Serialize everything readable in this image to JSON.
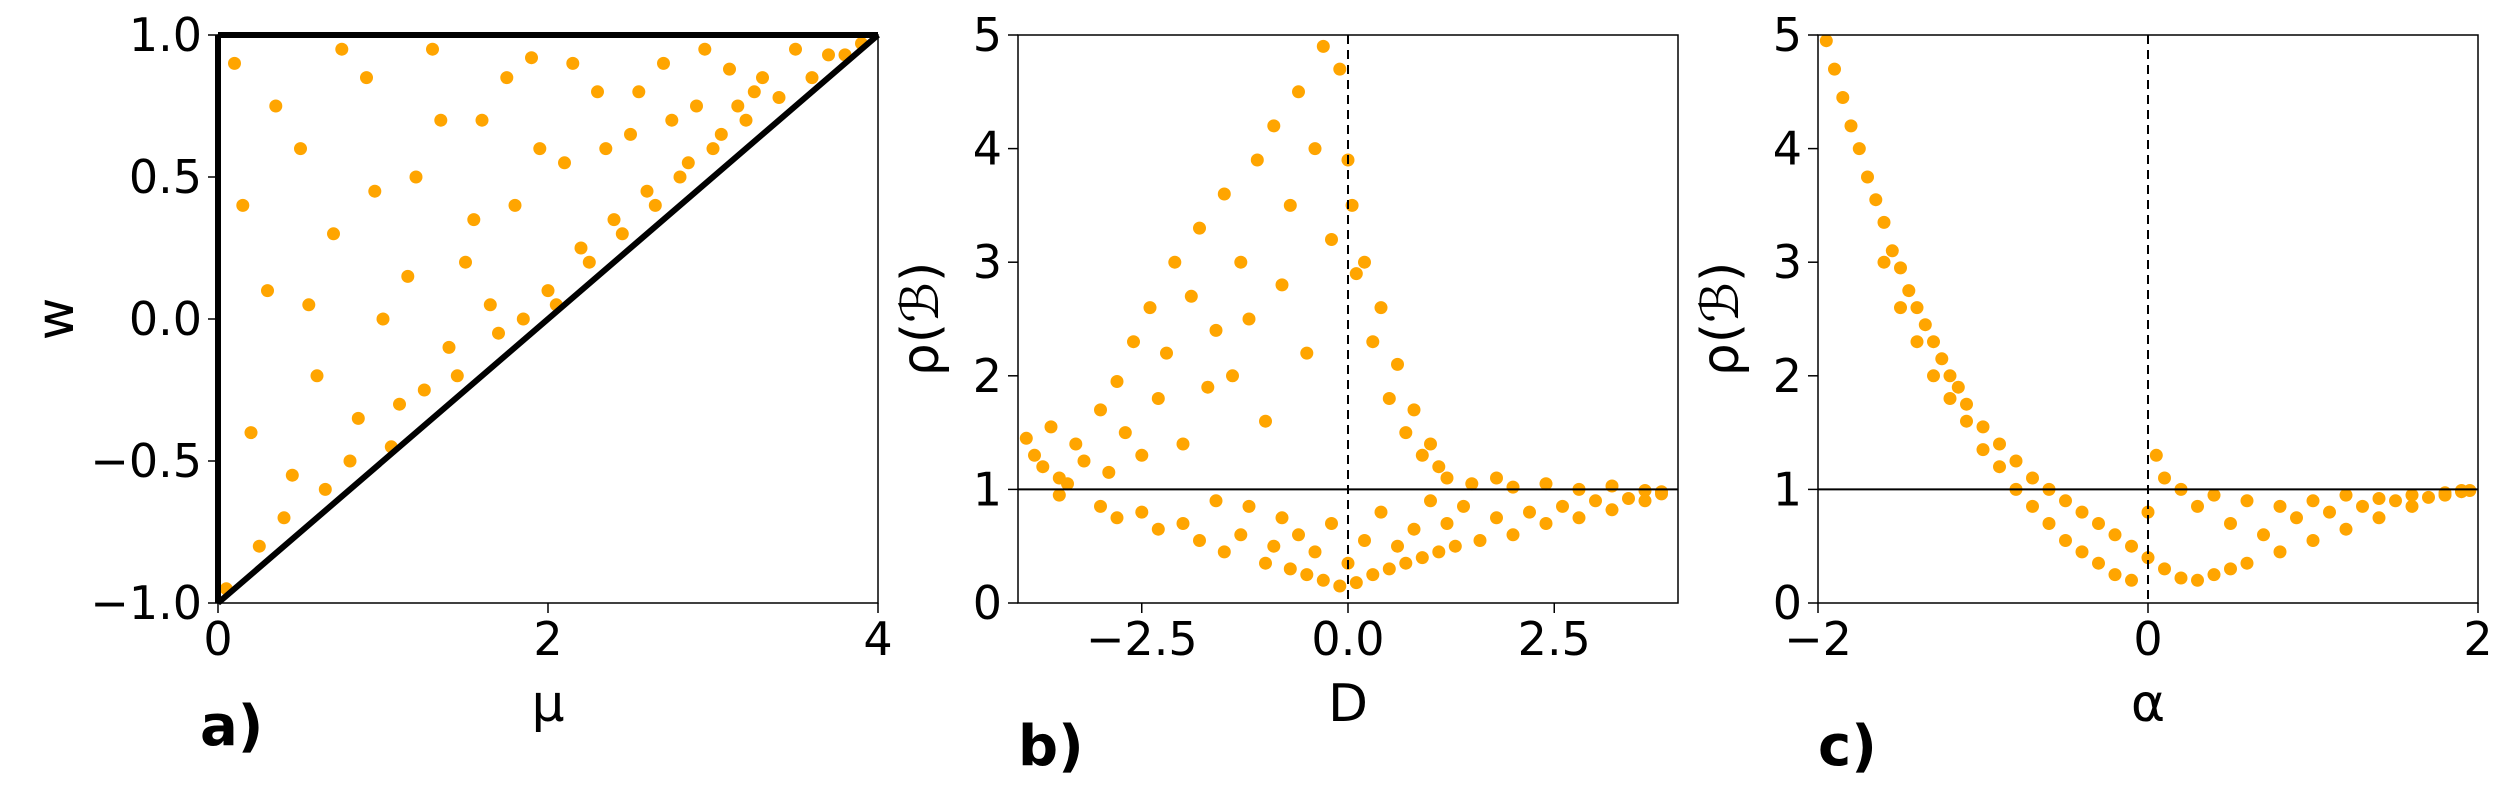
{
  "figure": {
    "background": "#ffffff",
    "point_color": "#ffa500"
  },
  "chart_data": [
    {
      "type": "scatter",
      "panel_label": "a)",
      "xlabel": "μ",
      "ylabel": "w",
      "xlim": [
        0,
        4
      ],
      "ylim": [
        -1.0,
        1.0
      ],
      "xticks": [
        0,
        2,
        4
      ],
      "xtick_labels": [
        "0",
        "2",
        "4"
      ],
      "yticks": [
        -1.0,
        -0.5,
        0.0,
        0.5,
        1.0
      ],
      "ytick_labels": [
        "−1.0",
        "−0.5",
        "0.0",
        "0.5",
        "1.0"
      ],
      "grid": false,
      "legend": "none",
      "series_color": "#ffa500",
      "region_description": "points uniformly fill the triangle bounded by μ = 0, w = 1 and w = μ/2 − 1",
      "reference_lines": [
        {
          "kind": "segment",
          "from": [
            0,
            -1.0
          ],
          "to": [
            0,
            1.0
          ],
          "color": "#000000",
          "style": "solid"
        },
        {
          "kind": "segment",
          "from": [
            0,
            1.0
          ],
          "to": [
            4,
            1.0
          ],
          "color": "#000000",
          "style": "solid"
        },
        {
          "kind": "segment",
          "from": [
            0,
            -1.0
          ],
          "to": [
            4,
            1.0
          ],
          "color": "#000000",
          "style": "solid"
        }
      ],
      "points": [
        [
          0.05,
          -0.95
        ],
        [
          0.1,
          0.9
        ],
        [
          0.2,
          -0.4
        ],
        [
          0.3,
          0.1
        ],
        [
          0.4,
          -0.7
        ],
        [
          0.5,
          0.6
        ],
        [
          0.6,
          -0.2
        ],
        [
          0.7,
          0.3
        ],
        [
          0.8,
          -0.5
        ],
        [
          0.9,
          0.85
        ],
        [
          1.0,
          0.0
        ],
        [
          1.1,
          -0.3
        ],
        [
          1.2,
          0.5
        ],
        [
          1.3,
          0.95
        ],
        [
          1.4,
          -0.1
        ],
        [
          1.5,
          0.2
        ],
        [
          1.6,
          0.7
        ],
        [
          1.7,
          -0.05
        ],
        [
          1.8,
          0.4
        ],
        [
          1.9,
          0.92
        ],
        [
          2.0,
          0.1
        ],
        [
          2.1,
          0.55
        ],
        [
          2.2,
          0.25
        ],
        [
          2.3,
          0.8
        ],
        [
          2.4,
          0.35
        ],
        [
          2.5,
          0.65
        ],
        [
          2.6,
          0.45
        ],
        [
          2.7,
          0.9
        ],
        [
          2.8,
          0.5
        ],
        [
          2.9,
          0.75
        ],
        [
          3.0,
          0.6
        ],
        [
          3.1,
          0.88
        ],
        [
          3.2,
          0.7
        ],
        [
          3.3,
          0.85
        ],
        [
          3.4,
          0.78
        ],
        [
          3.5,
          0.95
        ],
        [
          3.6,
          0.85
        ],
        [
          3.7,
          0.93
        ],
        [
          3.8,
          0.93
        ],
        [
          3.9,
          0.97
        ],
        [
          0.15,
          0.4
        ],
        [
          0.25,
          -0.8
        ],
        [
          0.35,
          0.75
        ],
        [
          0.45,
          -0.55
        ],
        [
          0.55,
          0.05
        ],
        [
          0.65,
          -0.6
        ],
        [
          0.75,
          0.95
        ],
        [
          0.85,
          -0.35
        ],
        [
          0.95,
          0.45
        ],
        [
          1.05,
          -0.45
        ],
        [
          1.15,
          0.15
        ],
        [
          1.25,
          -0.25
        ],
        [
          1.35,
          0.7
        ],
        [
          1.45,
          -0.2
        ],
        [
          1.55,
          0.35
        ],
        [
          1.65,
          0.05
        ],
        [
          1.75,
          0.85
        ],
        [
          1.85,
          0.0
        ],
        [
          1.95,
          0.6
        ],
        [
          2.05,
          0.05
        ],
        [
          2.15,
          0.9
        ],
        [
          2.25,
          0.2
        ],
        [
          2.35,
          0.6
        ],
        [
          2.45,
          0.3
        ],
        [
          2.55,
          0.8
        ],
        [
          2.65,
          0.4
        ],
        [
          2.75,
          0.7
        ],
        [
          2.85,
          0.55
        ],
        [
          2.95,
          0.95
        ],
        [
          3.05,
          0.65
        ],
        [
          3.15,
          0.75
        ],
        [
          3.25,
          0.8
        ]
      ]
    },
    {
      "type": "scatter",
      "panel_label": "b)",
      "xlabel": "D",
      "ylabel": "ρ(ℬ)",
      "xlim": [
        -4.0,
        4.0
      ],
      "ylim": [
        0,
        5
      ],
      "xticks": [
        -2.5,
        0.0,
        2.5
      ],
      "xtick_labels": [
        "−2.5",
        "0.0",
        "2.5"
      ],
      "yticks": [
        0,
        1,
        2,
        3,
        4,
        5
      ],
      "ytick_labels": [
        "0",
        "1",
        "2",
        "3",
        "4",
        "5"
      ],
      "grid": false,
      "legend": "none",
      "series_color": "#ffa500",
      "reference_lines": [
        {
          "kind": "horizontal",
          "value": 1,
          "color": "#000000",
          "style": "solid"
        },
        {
          "kind": "vertical",
          "value": 0.0,
          "color": "#000000",
          "style": "dashed"
        }
      ],
      "points": [
        [
          -3.9,
          1.45
        ],
        [
          -3.8,
          1.3
        ],
        [
          -3.7,
          1.2
        ],
        [
          -3.6,
          1.55
        ],
        [
          -3.5,
          1.1
        ],
        [
          -3.4,
          1.05
        ],
        [
          -3.3,
          1.4
        ],
        [
          -3.2,
          1.25
        ],
        [
          -3.0,
          1.7
        ],
        [
          -2.9,
          1.15
        ],
        [
          -2.8,
          1.95
        ],
        [
          -2.7,
          1.5
        ],
        [
          -2.6,
          2.3
        ],
        [
          -2.5,
          1.3
        ],
        [
          -2.4,
          2.6
        ],
        [
          -2.3,
          1.8
        ],
        [
          -2.2,
          2.2
        ],
        [
          -2.1,
          3.0
        ],
        [
          -2.0,
          1.4
        ],
        [
          -1.9,
          2.7
        ],
        [
          -1.8,
          3.3
        ],
        [
          -1.7,
          1.9
        ],
        [
          -1.6,
          2.4
        ],
        [
          -1.5,
          3.6
        ],
        [
          -1.4,
          2.0
        ],
        [
          -1.3,
          3.0
        ],
        [
          -1.2,
          2.5
        ],
        [
          -1.1,
          3.9
        ],
        [
          -1.0,
          1.6
        ],
        [
          -0.9,
          4.2
        ],
        [
          -0.8,
          2.8
        ],
        [
          -0.7,
          3.5
        ],
        [
          -0.6,
          4.5
        ],
        [
          -0.5,
          2.2
        ],
        [
          -0.4,
          4.0
        ],
        [
          -0.3,
          4.9
        ],
        [
          -0.2,
          3.2
        ],
        [
          -0.1,
          4.7
        ],
        [
          0.0,
          3.9
        ],
        [
          0.05,
          3.5
        ],
        [
          0.1,
          2.9
        ],
        [
          0.2,
          3.0
        ],
        [
          0.3,
          2.3
        ],
        [
          0.4,
          2.6
        ],
        [
          0.5,
          1.8
        ],
        [
          0.6,
          2.1
        ],
        [
          0.7,
          1.5
        ],
        [
          0.8,
          1.7
        ],
        [
          0.9,
          1.3
        ],
        [
          1.0,
          1.4
        ],
        [
          1.1,
          1.2
        ],
        [
          1.2,
          1.1
        ],
        [
          1.5,
          1.05
        ],
        [
          1.8,
          1.1
        ],
        [
          2.0,
          1.02
        ],
        [
          2.4,
          1.05
        ],
        [
          2.8,
          1.0
        ],
        [
          3.2,
          1.03
        ],
        [
          3.6,
          0.99
        ],
        [
          3.8,
          0.98
        ],
        [
          -3.5,
          0.95
        ],
        [
          -3.0,
          0.85
        ],
        [
          -2.8,
          0.75
        ],
        [
          -2.5,
          0.8
        ],
        [
          -2.3,
          0.65
        ],
        [
          -2.0,
          0.7
        ],
        [
          -1.8,
          0.55
        ],
        [
          -1.6,
          0.9
        ],
        [
          -1.5,
          0.45
        ],
        [
          -1.3,
          0.6
        ],
        [
          -1.2,
          0.85
        ],
        [
          -1.0,
          0.35
        ],
        [
          -0.9,
          0.5
        ],
        [
          -0.8,
          0.75
        ],
        [
          -0.7,
          0.3
        ],
        [
          -0.6,
          0.6
        ],
        [
          -0.5,
          0.25
        ],
        [
          -0.4,
          0.45
        ],
        [
          -0.3,
          0.2
        ],
        [
          -0.2,
          0.7
        ],
        [
          -0.1,
          0.15
        ],
        [
          0.0,
          0.35
        ],
        [
          0.1,
          0.18
        ],
        [
          0.2,
          0.55
        ],
        [
          0.3,
          0.25
        ],
        [
          0.4,
          0.8
        ],
        [
          0.5,
          0.3
        ],
        [
          0.6,
          0.5
        ],
        [
          0.7,
          0.35
        ],
        [
          0.8,
          0.65
        ],
        [
          0.9,
          0.4
        ],
        [
          1.0,
          0.9
        ],
        [
          1.1,
          0.45
        ],
        [
          1.2,
          0.7
        ],
        [
          1.3,
          0.5
        ],
        [
          1.4,
          0.85
        ],
        [
          1.6,
          0.55
        ],
        [
          1.8,
          0.75
        ],
        [
          2.0,
          0.6
        ],
        [
          2.2,
          0.8
        ],
        [
          2.4,
          0.7
        ],
        [
          2.6,
          0.85
        ],
        [
          2.8,
          0.75
        ],
        [
          3.0,
          0.9
        ],
        [
          3.2,
          0.82
        ],
        [
          3.4,
          0.92
        ],
        [
          3.6,
          0.9
        ],
        [
          3.8,
          0.96
        ]
      ]
    },
    {
      "type": "scatter",
      "panel_label": "c)",
      "xlabel": "α",
      "ylabel": "ρ(ℬ)",
      "xlim": [
        -2,
        2
      ],
      "ylim": [
        0,
        5
      ],
      "xticks": [
        -2,
        0,
        2
      ],
      "xtick_labels": [
        "−2",
        "0",
        "2"
      ],
      "yticks": [
        0,
        1,
        2,
        3,
        4,
        5
      ],
      "ytick_labels": [
        "0",
        "1",
        "2",
        "3",
        "4",
        "5"
      ],
      "grid": false,
      "legend": "none",
      "series_color": "#ffa500",
      "reference_lines": [
        {
          "kind": "horizontal",
          "value": 1,
          "color": "#000000",
          "style": "solid"
        },
        {
          "kind": "vertical",
          "value": 0,
          "color": "#000000",
          "style": "dashed"
        }
      ],
      "points": [
        [
          -1.95,
          4.95
        ],
        [
          -1.9,
          4.7
        ],
        [
          -1.85,
          4.45
        ],
        [
          -1.8,
          4.2
        ],
        [
          -1.75,
          4.0
        ],
        [
          -1.7,
          3.75
        ],
        [
          -1.65,
          3.55
        ],
        [
          -1.6,
          3.35
        ],
        [
          -1.55,
          3.1
        ],
        [
          -1.5,
          2.95
        ],
        [
          -1.45,
          2.75
        ],
        [
          -1.4,
          2.6
        ],
        [
          -1.35,
          2.45
        ],
        [
          -1.3,
          2.3
        ],
        [
          -1.25,
          2.15
        ],
        [
          -1.2,
          2.0
        ],
        [
          -1.15,
          1.9
        ],
        [
          -1.1,
          1.75
        ],
        [
          -1.0,
          1.55
        ],
        [
          -0.9,
          1.4
        ],
        [
          -0.8,
          1.25
        ],
        [
          -0.7,
          1.1
        ],
        [
          -0.6,
          1.0
        ],
        [
          -0.5,
          0.9
        ],
        [
          -0.4,
          0.8
        ],
        [
          -0.3,
          0.7
        ],
        [
          -0.2,
          0.6
        ],
        [
          -0.1,
          0.5
        ],
        [
          0.0,
          0.4
        ],
        [
          0.1,
          0.3
        ],
        [
          0.2,
          0.22
        ],
        [
          0.3,
          0.2
        ],
        [
          0.4,
          0.25
        ],
        [
          0.5,
          0.3
        ],
        [
          0.6,
          0.35
        ],
        [
          0.8,
          0.45
        ],
        [
          1.0,
          0.55
        ],
        [
          1.2,
          0.65
        ],
        [
          1.4,
          0.75
        ],
        [
          1.6,
          0.85
        ],
        [
          1.8,
          0.95
        ],
        [
          1.9,
          0.98
        ],
        [
          -1.6,
          3.0
        ],
        [
          -1.5,
          2.6
        ],
        [
          -1.4,
          2.3
        ],
        [
          -1.3,
          2.0
        ],
        [
          -1.2,
          1.8
        ],
        [
          -1.1,
          1.6
        ],
        [
          -1.0,
          1.35
        ],
        [
          -0.9,
          1.2
        ],
        [
          -0.8,
          1.0
        ],
        [
          -0.7,
          0.85
        ],
        [
          -0.6,
          0.7
        ],
        [
          -0.5,
          0.55
        ],
        [
          -0.4,
          0.45
        ],
        [
          -0.3,
          0.35
        ],
        [
          -0.2,
          0.25
        ],
        [
          -0.1,
          0.2
        ],
        [
          0.0,
          0.8
        ],
        [
          0.05,
          1.3
        ],
        [
          0.1,
          1.1
        ],
        [
          0.2,
          1.0
        ],
        [
          0.3,
          0.85
        ],
        [
          0.4,
          0.95
        ],
        [
          0.5,
          0.7
        ],
        [
          0.6,
          0.9
        ],
        [
          0.7,
          0.6
        ],
        [
          0.8,
          0.85
        ],
        [
          0.9,
          0.75
        ],
        [
          1.0,
          0.9
        ],
        [
          1.1,
          0.8
        ],
        [
          1.2,
          0.95
        ],
        [
          1.3,
          0.85
        ],
        [
          1.4,
          0.92
        ],
        [
          1.5,
          0.9
        ],
        [
          1.6,
          0.95
        ],
        [
          1.7,
          0.93
        ],
        [
          1.8,
          0.97
        ],
        [
          1.9,
          0.99
        ],
        [
          1.95,
          0.99
        ]
      ]
    }
  ]
}
